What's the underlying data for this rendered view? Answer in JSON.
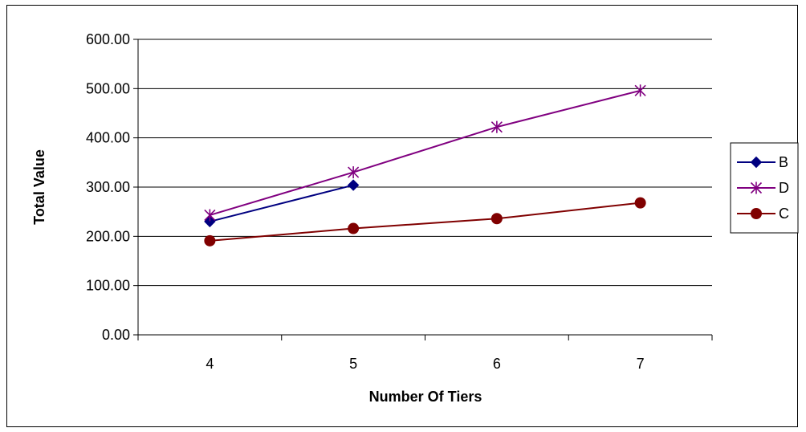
{
  "chart_data": {
    "type": "line",
    "title": "",
    "xlabel": "Number Of Tiers",
    "ylabel": "Total Value",
    "categories": [
      "4",
      "5",
      "6",
      "7"
    ],
    "ylim": [
      0,
      600
    ],
    "yticks": [
      "0.00",
      "100.00",
      "200.00",
      "300.00",
      "400.00",
      "500.00",
      "600.00"
    ],
    "grid": true,
    "legend_position": "right",
    "series": [
      {
        "name": "B",
        "values": [
          230,
          304,
          null,
          null
        ],
        "color": "#000080",
        "marker": "diamond"
      },
      {
        "name": "D",
        "values": [
          243,
          330,
          422,
          496
        ],
        "color": "#800080",
        "marker": "asterisk"
      },
      {
        "name": "C",
        "values": [
          191,
          216,
          236,
          268
        ],
        "color": "#800000",
        "marker": "circle"
      }
    ]
  }
}
